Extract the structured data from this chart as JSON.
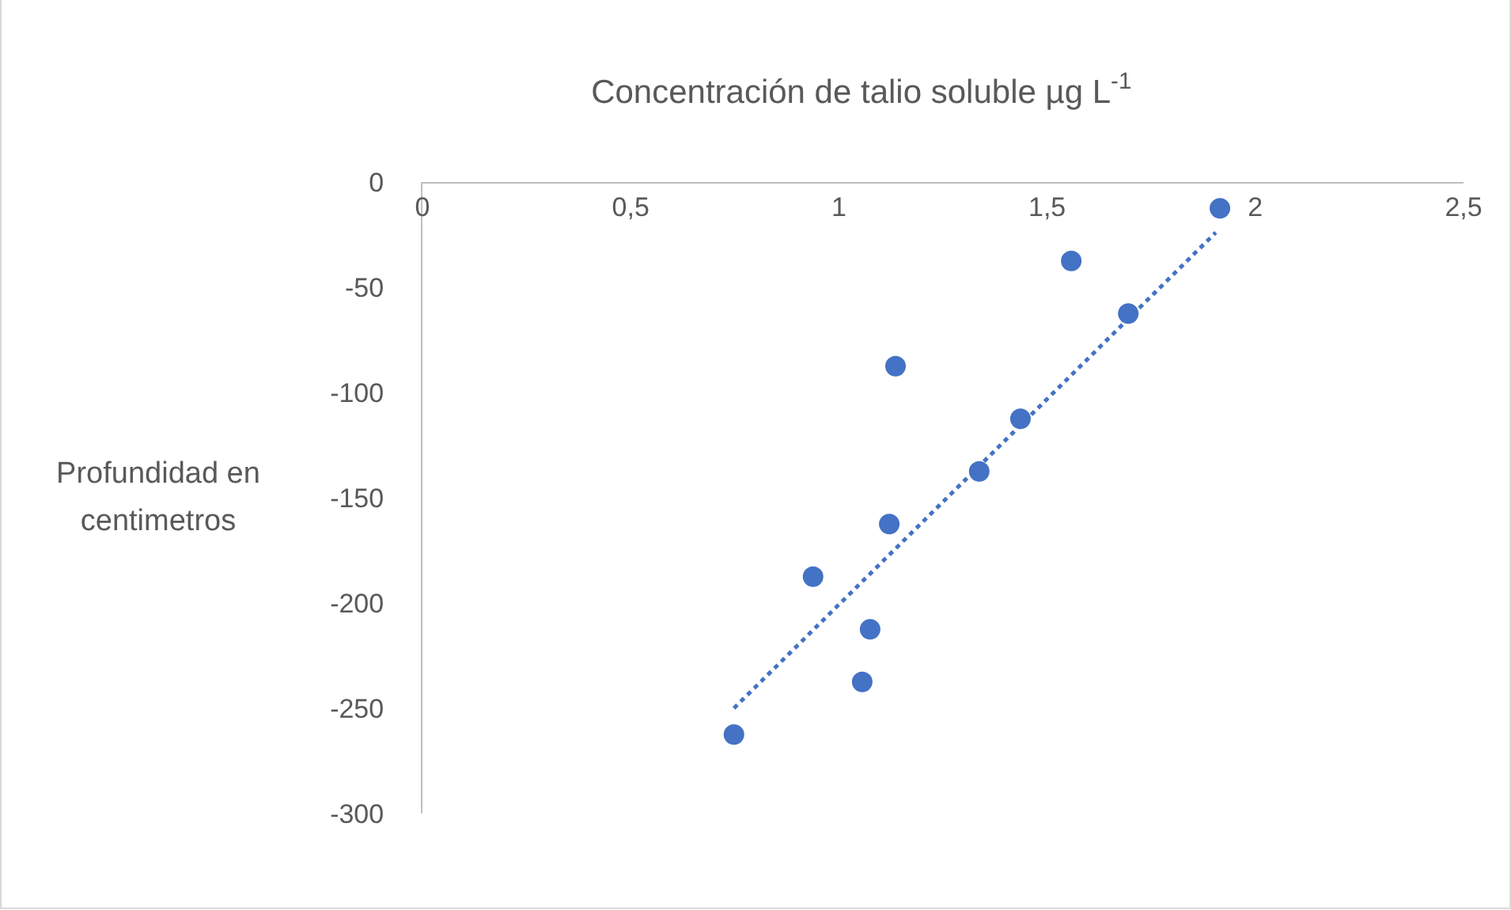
{
  "chart_data": {
    "type": "scatter",
    "title": "Concentración de talio soluble µg L$^{-1}$",
    "ylabel": "Profundidad en centimetros",
    "xlim": [
      0,
      2.5
    ],
    "xticks": [
      0,
      {
        "value": 0.5,
        "label": "0,5"
      },
      1,
      {
        "value": 1.5,
        "label": "1,5"
      },
      2,
      {
        "value": 2.5,
        "label": "2,5"
      }
    ],
    "ylim": [
      -300,
      0
    ],
    "yticks": [
      -300,
      -250,
      -200,
      -150,
      -100,
      -50,
      0
    ],
    "grid": false,
    "legend": false,
    "series": [
      {
        "marker": "circle",
        "color": "#4472c4",
        "x": [
          1.915,
          1.558,
          1.695,
          1.136,
          1.436,
          1.337,
          1.121,
          0.938,
          1.075,
          1.056,
          0.748
        ],
        "values": [
          -12.5,
          -37.5,
          -62.5,
          -87.5,
          -112.5,
          -137.5,
          -162.5,
          -187.5,
          -212.5,
          -237.5,
          -262.5
        ]
      },
      {
        "type": "line",
        "color": "#4472c4",
        "line_style": "dotted",
        "x": [
          0.748,
          1.905
        ],
        "values": [
          -250,
          -24
        ]
      }
    ]
  }
}
